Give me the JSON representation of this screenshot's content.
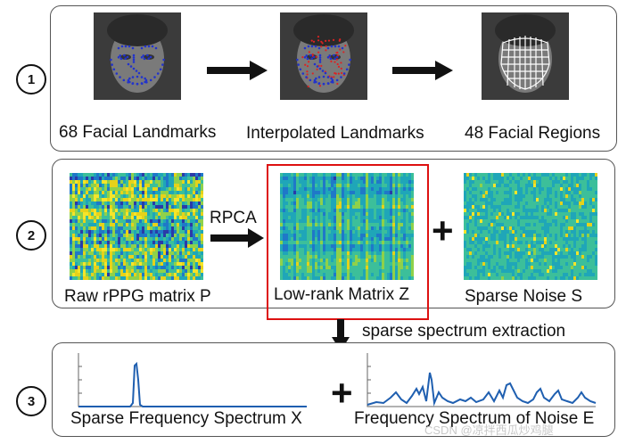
{
  "row1": {
    "step": "1",
    "labels": [
      "68 Facial Landmarks",
      "Interpolated Landmarks",
      "48 Facial Regions"
    ]
  },
  "row2": {
    "step": "2",
    "arrow_label": "RPCA",
    "labels": [
      "Raw rPPG matrix P",
      "Low-rank Matrix Z",
      "Sparse Noise S"
    ],
    "plus": "+"
  },
  "connector": {
    "label": "sparse spectrum extraction"
  },
  "row3": {
    "step": "3",
    "labels": [
      "Sparse Frequency Spectrum X",
      "Frequency Spectrum of Noise E"
    ],
    "plus": "+"
  },
  "watermark": "CSDN @凉拌西瓜炒鸡腿",
  "colors": {
    "highlight": "#dd1111",
    "landmark": "#2233cc",
    "interpolated": "#dd2222",
    "spectrum": "#1f5fb0"
  }
}
